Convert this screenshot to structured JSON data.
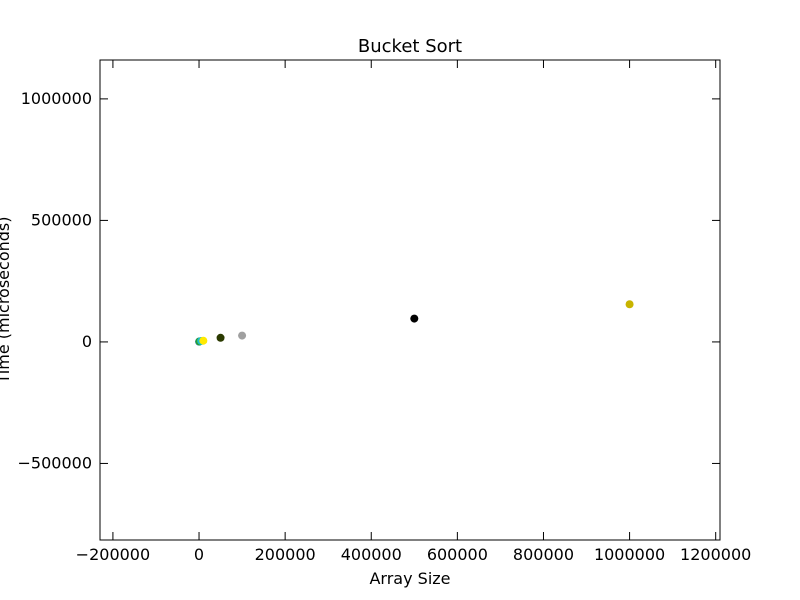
{
  "chart_data": {
    "type": "scatter",
    "title": "Bucket Sort",
    "xlabel": "Array Size",
    "ylabel": "Time (microseconds)",
    "xlim": [
      -230000,
      1210000
    ],
    "ylim": [
      -815000,
      1160000
    ],
    "xticks": [
      -200000,
      0,
      200000,
      400000,
      600000,
      800000,
      1000000,
      1200000
    ],
    "xtick_labels": [
      "−200000",
      "0",
      "200000",
      "400000",
      "600000",
      "800000",
      "1000000",
      "1200000"
    ],
    "yticks": [
      -500000,
      0,
      500000,
      1000000
    ],
    "ytick_labels": [
      "−500000",
      "0",
      "500000",
      "1000000"
    ],
    "grid": false,
    "points": [
      {
        "x": 100,
        "y": 1000,
        "color": "#1f77b4"
      },
      {
        "x": 1000,
        "y": 2000,
        "color": "#2ca02c"
      },
      {
        "x": 5000,
        "y": 4000,
        "color": "#17becf"
      },
      {
        "x": 10000,
        "y": 5000,
        "color": "#ffea00"
      },
      {
        "x": 50000,
        "y": 17000,
        "color": "#2b3a00"
      },
      {
        "x": 100000,
        "y": 26000,
        "color": "#a0a0a0"
      },
      {
        "x": 500000,
        "y": 96000,
        "color": "#000000"
      },
      {
        "x": 1000000,
        "y": 155000,
        "color": "#c8b400"
      }
    ]
  }
}
